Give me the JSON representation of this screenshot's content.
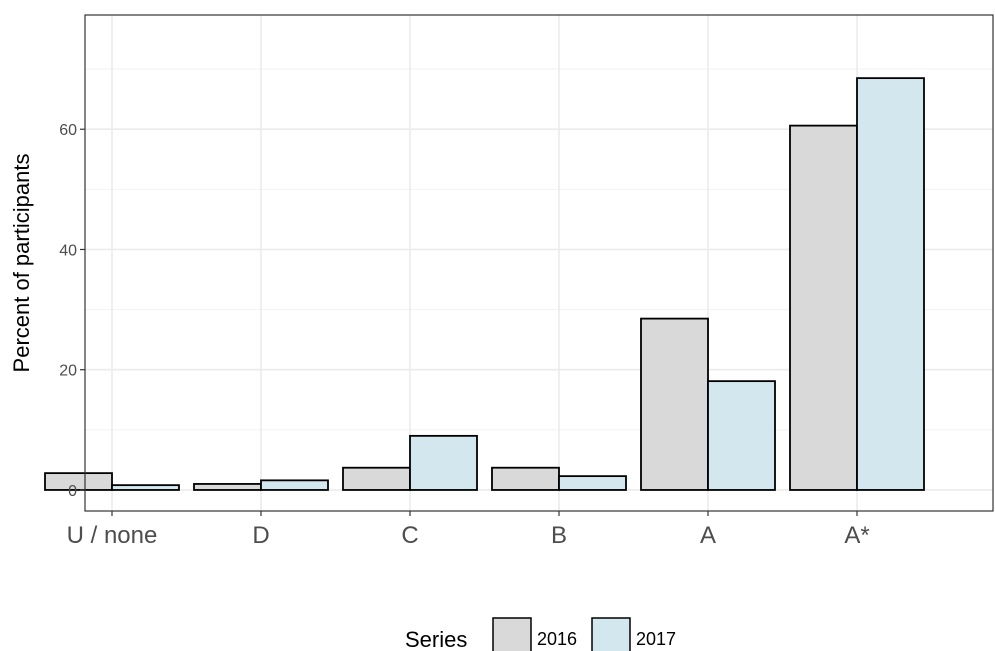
{
  "chart_data": {
    "type": "bar",
    "title": "",
    "xlabel": "",
    "ylabel": "Percent of participants",
    "categories": [
      "U / none",
      "D",
      "C",
      "B",
      "A",
      "A*"
    ],
    "series": [
      {
        "name": "2016",
        "color": "#d9d9d9",
        "values": [
          2.8,
          1.0,
          3.7,
          3.7,
          28.5,
          60.6
        ]
      },
      {
        "name": "2017",
        "color": "#d2e8ee",
        "values": [
          0.8,
          1.6,
          9.0,
          2.3,
          18.1,
          68.5
        ]
      }
    ],
    "ylim": [
      -3.5,
      79
    ],
    "yticks": [
      0,
      20,
      40,
      60
    ],
    "grid": true,
    "legend": {
      "title": "Series",
      "position": "bottom"
    }
  }
}
